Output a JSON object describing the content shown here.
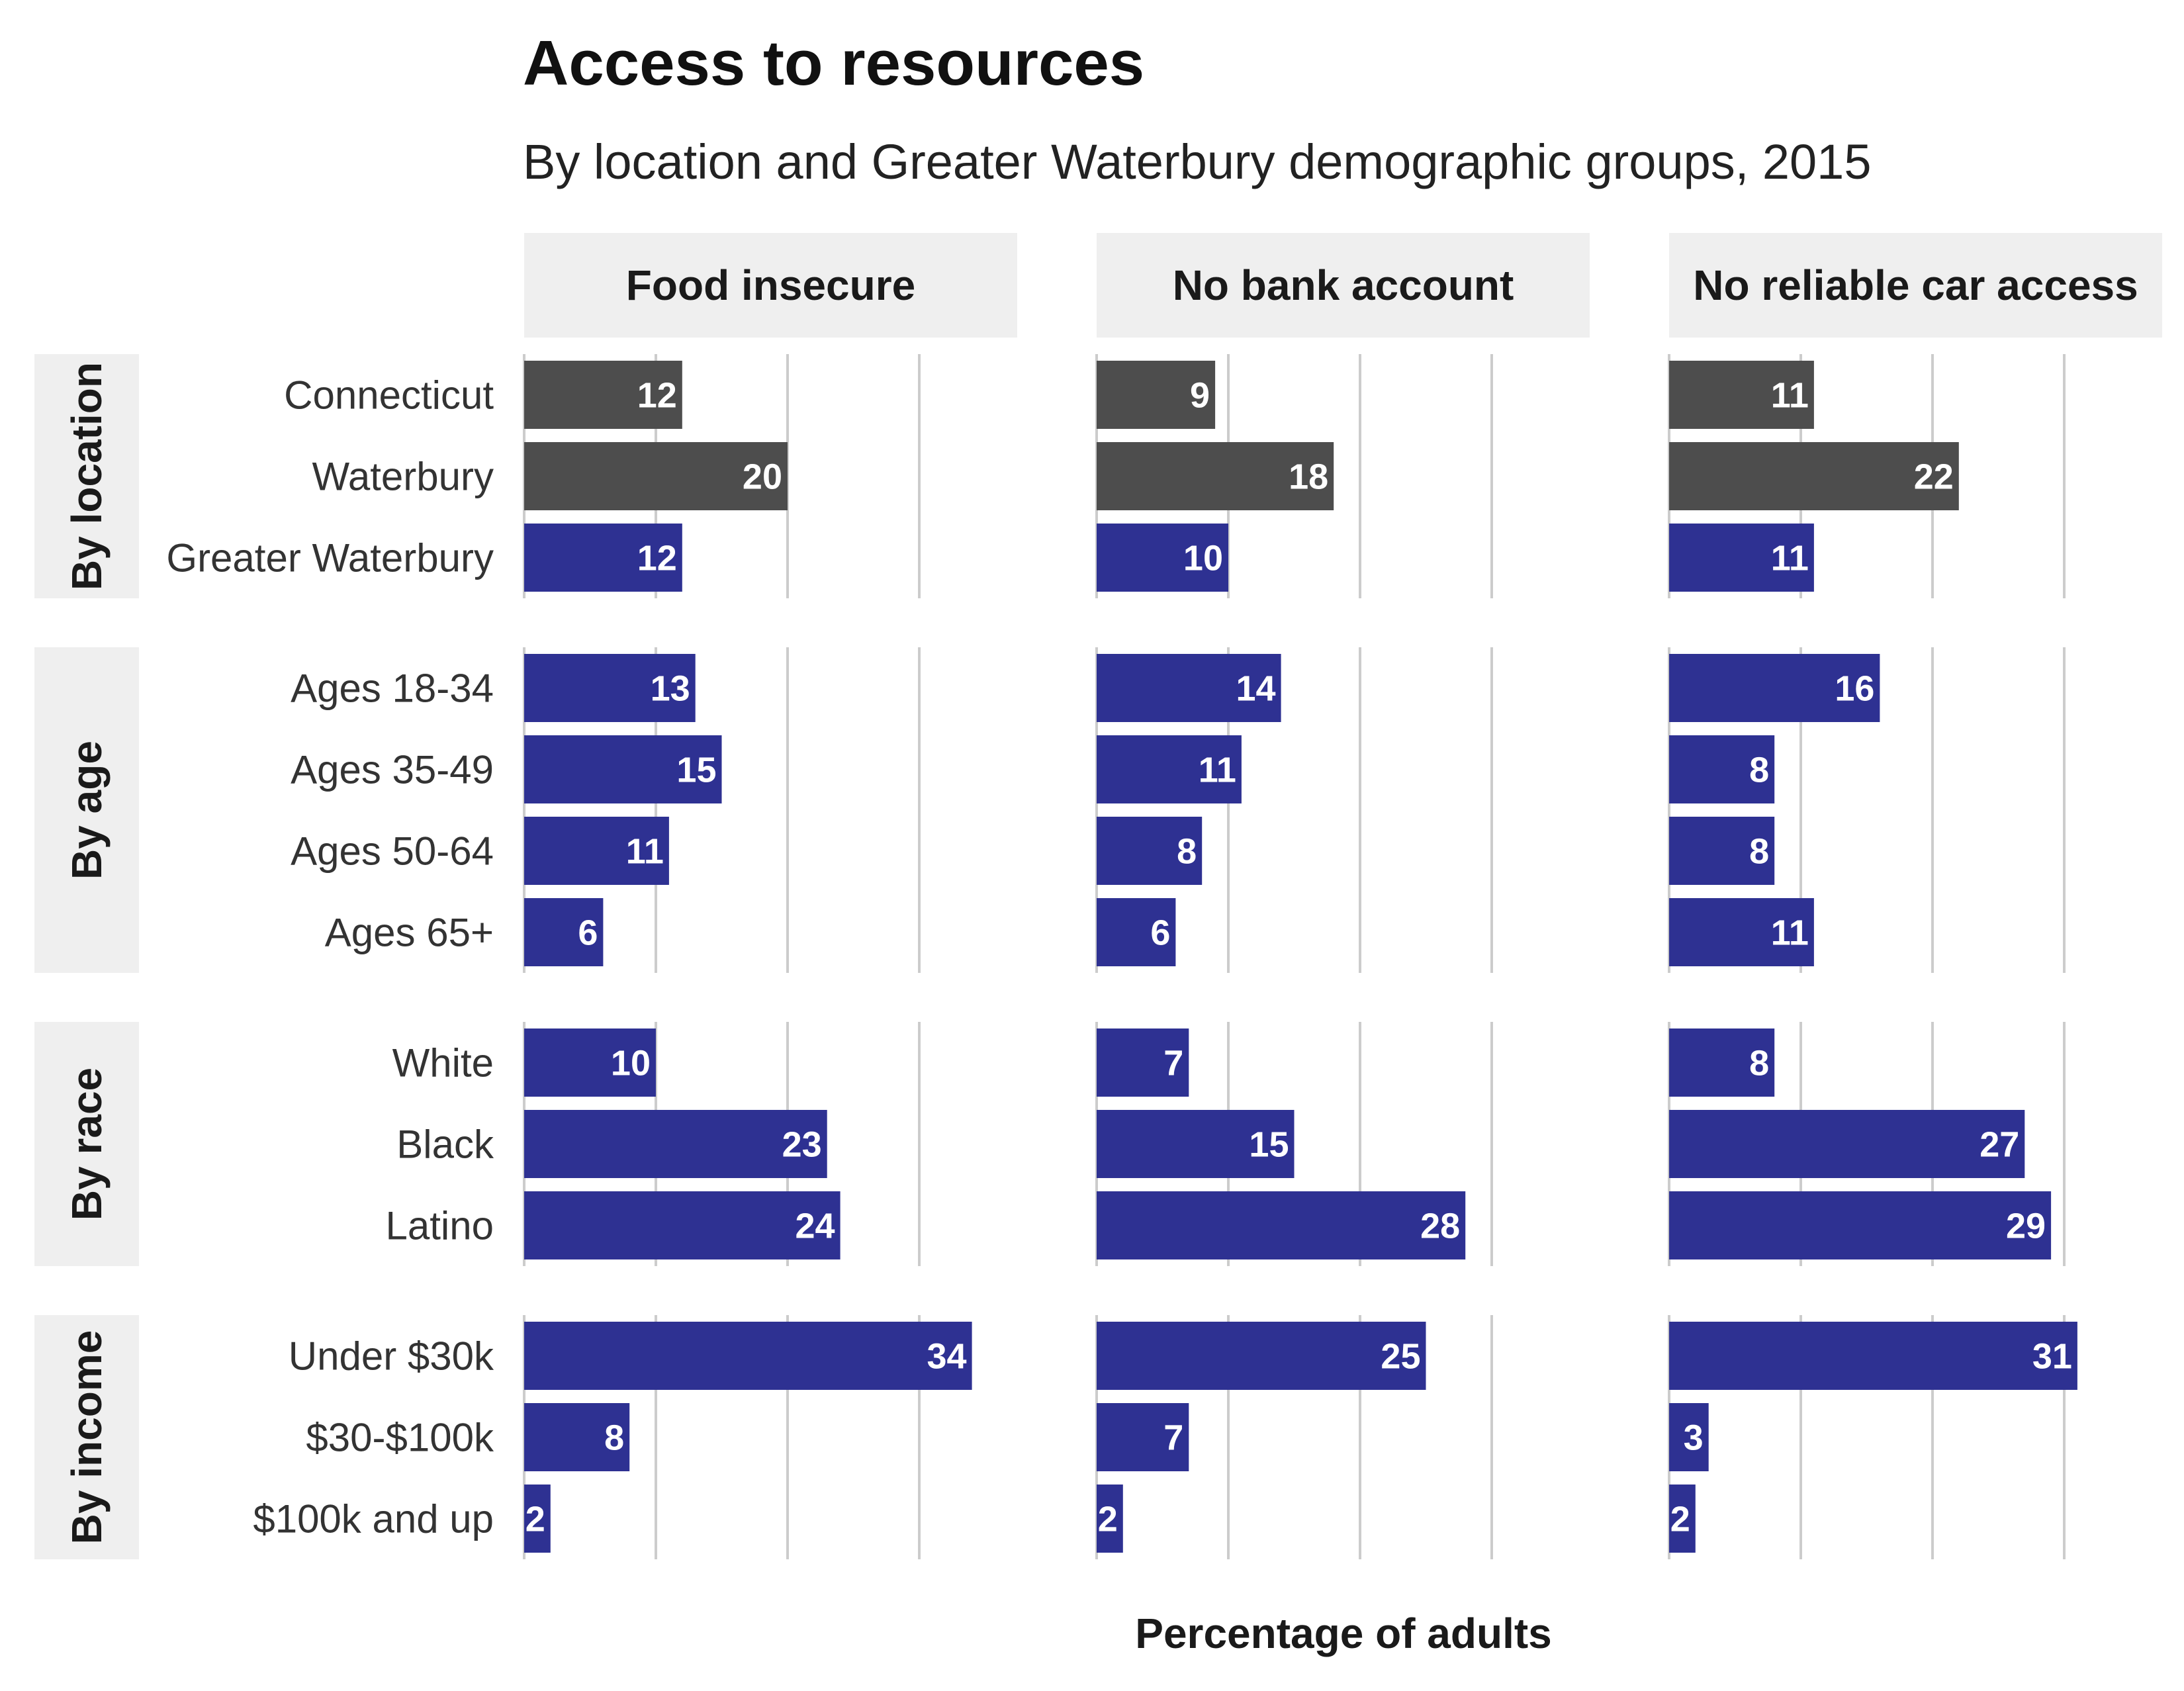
{
  "chart_data": {
    "type": "bar",
    "orientation": "horizontal",
    "title": "Access to resources",
    "subtitle": "By location and Greater Waterbury demographic groups, 2015",
    "xlabel": "Percentage of adults",
    "xlim": [
      0,
      40
    ],
    "grid": true,
    "columns": [
      "Food insecure",
      "No bank account",
      "No reliable car access"
    ],
    "colors": {
      "location": "#4d4d4d",
      "group": "#2e3192"
    },
    "groups": [
      {
        "name": "By location",
        "rows": [
          {
            "label": "Connecticut",
            "highlight": "location",
            "values": [
              12,
              9,
              11
            ]
          },
          {
            "label": "Waterbury",
            "highlight": "location",
            "values": [
              20,
              18,
              22
            ]
          },
          {
            "label": "Greater Waterbury",
            "highlight": "group",
            "values": [
              12,
              10,
              11
            ]
          }
        ]
      },
      {
        "name": "By age",
        "rows": [
          {
            "label": "Ages 18-34",
            "highlight": "group",
            "values": [
              13,
              14,
              16
            ]
          },
          {
            "label": "Ages 35-49",
            "highlight": "group",
            "values": [
              15,
              11,
              8
            ]
          },
          {
            "label": "Ages 50-64",
            "highlight": "group",
            "values": [
              11,
              8,
              8
            ]
          },
          {
            "label": "Ages 65+",
            "highlight": "group",
            "values": [
              6,
              6,
              11
            ]
          }
        ]
      },
      {
        "name": "By race",
        "rows": [
          {
            "label": "White",
            "highlight": "group",
            "values": [
              10,
              7,
              8
            ]
          },
          {
            "label": "Black",
            "highlight": "group",
            "values": [
              23,
              15,
              27
            ]
          },
          {
            "label": "Latino",
            "highlight": "group",
            "values": [
              24,
              28,
              29
            ]
          }
        ]
      },
      {
        "name": "By income",
        "rows": [
          {
            "label": "Under $30k",
            "highlight": "group",
            "values": [
              34,
              25,
              31
            ]
          },
          {
            "label": "$30-$100k",
            "highlight": "group",
            "values": [
              8,
              7,
              3
            ]
          },
          {
            "label": "$100k and up",
            "highlight": "group",
            "values": [
              2,
              2,
              2
            ]
          }
        ]
      }
    ]
  }
}
